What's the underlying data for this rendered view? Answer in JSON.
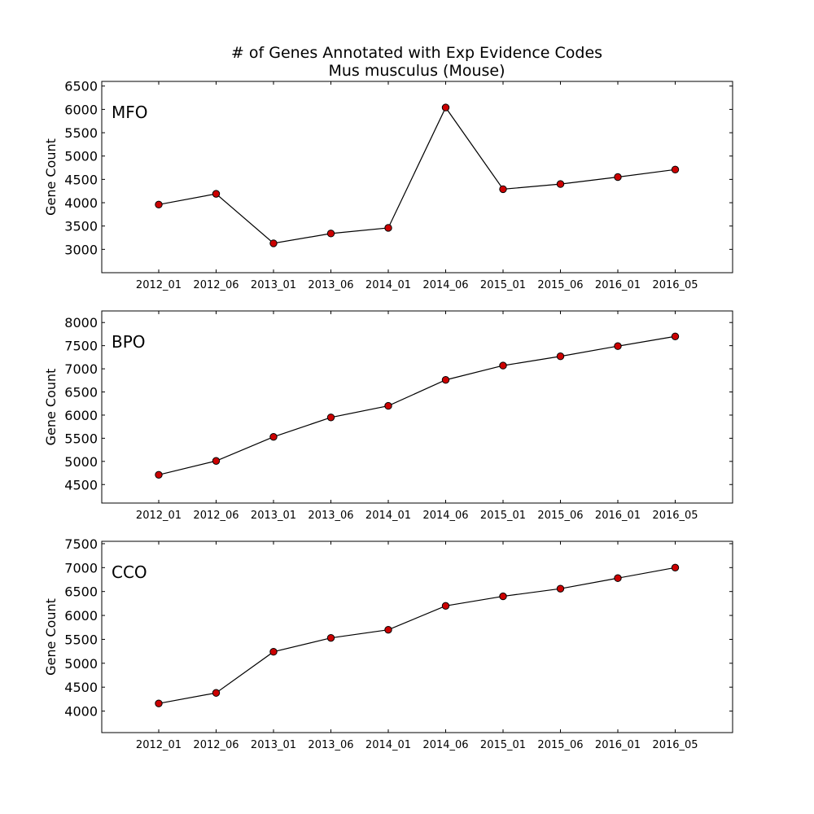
{
  "figure": {
    "title_line1": "# of Genes Annotated with Exp Evidence Codes",
    "title_line2": "Mus musculus (Mouse)"
  },
  "colors": {
    "marker_fill": "#cc0000",
    "line": "#000000"
  },
  "chart_data": [
    {
      "type": "line",
      "label": "MFO",
      "ylabel": "Gene Count",
      "categories": [
        "2012_01",
        "2012_06",
        "2013_01",
        "2013_06",
        "2014_01",
        "2014_06",
        "2015_01",
        "2015_06",
        "2016_01",
        "2016_05"
      ],
      "values": [
        3960,
        4190,
        3130,
        3340,
        3460,
        6040,
        4290,
        4400,
        4550,
        4710
      ],
      "ylim": [
        2500,
        6600
      ],
      "yticks": [
        3000,
        3500,
        4000,
        4500,
        5000,
        5500,
        6000,
        6500
      ],
      "grid": false
    },
    {
      "type": "line",
      "label": "BPO",
      "ylabel": "Gene Count",
      "categories": [
        "2012_01",
        "2012_06",
        "2013_01",
        "2013_06",
        "2014_01",
        "2014_06",
        "2015_01",
        "2015_06",
        "2016_01",
        "2016_05"
      ],
      "values": [
        4710,
        5010,
        5530,
        5950,
        6200,
        6760,
        7070,
        7270,
        7490,
        7700
      ],
      "ylim": [
        4100,
        8250
      ],
      "yticks": [
        4500,
        5000,
        5500,
        6000,
        6500,
        7000,
        7500,
        8000
      ],
      "grid": false
    },
    {
      "type": "line",
      "label": "CCO",
      "ylabel": "Gene Count",
      "categories": [
        "2012_01",
        "2012_06",
        "2013_01",
        "2013_06",
        "2014_01",
        "2014_06",
        "2015_01",
        "2015_06",
        "2016_01",
        "2016_05"
      ],
      "values": [
        4160,
        4380,
        5240,
        5530,
        5700,
        6200,
        6400,
        6560,
        6780,
        7000
      ],
      "ylim": [
        3550,
        7550
      ],
      "yticks": [
        4000,
        4500,
        5000,
        5500,
        6000,
        6500,
        7000,
        7500
      ],
      "grid": false
    }
  ]
}
